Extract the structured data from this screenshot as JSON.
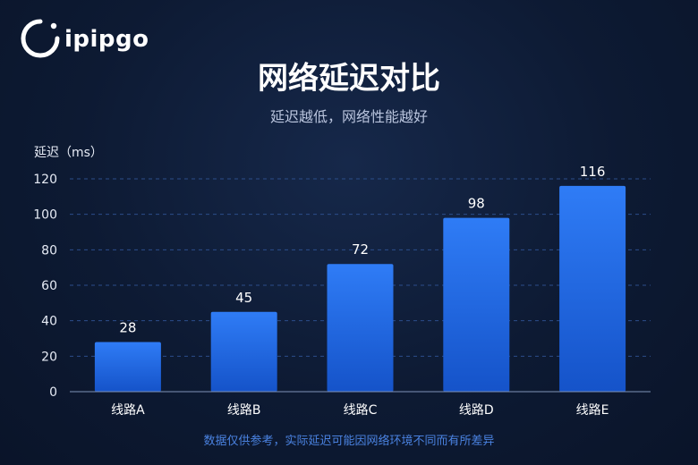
{
  "logo": {
    "text": "ipipgo",
    "icon": "ipipgo-logo-icon"
  },
  "colors": {
    "background": "#0d1a33",
    "bar_top": "#2f7cf6",
    "bar_bottom": "#1553c9",
    "grid": "#2c4d8a",
    "footnote": "#4a82e0"
  },
  "chart_data": {
    "type": "bar",
    "title": "网络延迟对比",
    "subtitle": "延迟越低，网络性能越好",
    "ylabel": "延迟（ms）",
    "xlabel": "",
    "categories": [
      "线路A",
      "线路B",
      "线路C",
      "线路D",
      "线路E"
    ],
    "values": [
      28,
      45,
      72,
      98,
      116
    ],
    "ylim": [
      0,
      120
    ],
    "yticks": [
      0,
      20,
      40,
      60,
      80,
      100,
      120
    ],
    "grid": true,
    "data_labels": true
  },
  "footnote": "数据仅供参考，实际延迟可能因网络环境不同而有所差异"
}
